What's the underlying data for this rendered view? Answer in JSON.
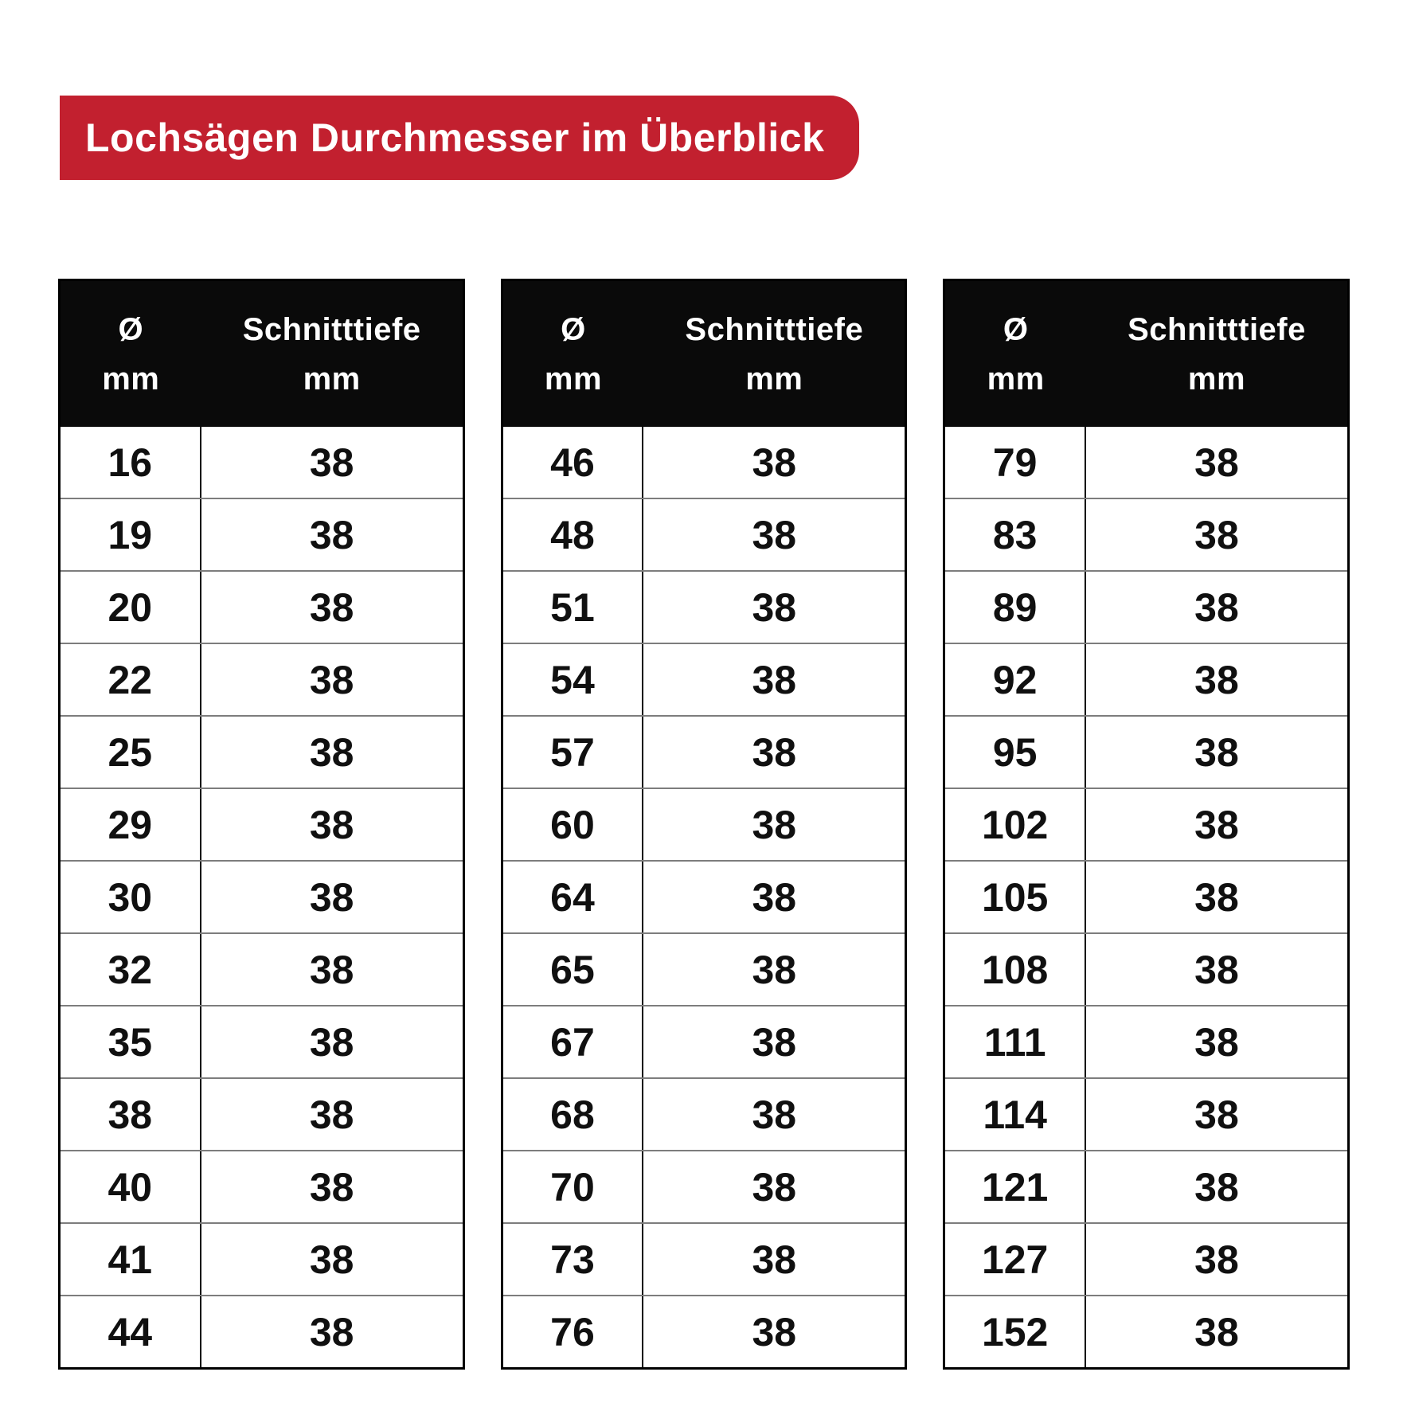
{
  "title": "Lochsägen Durchmesser im Überblick",
  "colors": {
    "banner_red": "#c2202f",
    "header_black": "#0a0a0a",
    "row_divider_gray": "#7d7d7d",
    "table_border_black": "#000000",
    "text_white": "#ffffff",
    "text_black": "#101010"
  },
  "table_headers": {
    "diameter_line1": "Ø",
    "diameter_line2": "mm",
    "depth_line1": "Schnitttiefe",
    "depth_line2": "mm"
  },
  "chart_data": {
    "type": "table",
    "title": "Lochsägen Durchmesser im Überblick",
    "columns": [
      "Ø mm",
      "Schnitttiefe mm"
    ],
    "tables": [
      {
        "rows": [
          [
            16,
            38
          ],
          [
            19,
            38
          ],
          [
            20,
            38
          ],
          [
            22,
            38
          ],
          [
            25,
            38
          ],
          [
            29,
            38
          ],
          [
            30,
            38
          ],
          [
            32,
            38
          ],
          [
            35,
            38
          ],
          [
            38,
            38
          ],
          [
            40,
            38
          ],
          [
            41,
            38
          ],
          [
            44,
            38
          ]
        ]
      },
      {
        "rows": [
          [
            46,
            38
          ],
          [
            48,
            38
          ],
          [
            51,
            38
          ],
          [
            54,
            38
          ],
          [
            57,
            38
          ],
          [
            60,
            38
          ],
          [
            64,
            38
          ],
          [
            65,
            38
          ],
          [
            67,
            38
          ],
          [
            68,
            38
          ],
          [
            70,
            38
          ],
          [
            73,
            38
          ],
          [
            76,
            38
          ]
        ]
      },
      {
        "rows": [
          [
            79,
            38
          ],
          [
            83,
            38
          ],
          [
            89,
            38
          ],
          [
            92,
            38
          ],
          [
            95,
            38
          ],
          [
            102,
            38
          ],
          [
            105,
            38
          ],
          [
            108,
            38
          ],
          [
            111,
            38
          ],
          [
            114,
            38
          ],
          [
            121,
            38
          ],
          [
            127,
            38
          ],
          [
            152,
            38
          ]
        ]
      }
    ]
  }
}
